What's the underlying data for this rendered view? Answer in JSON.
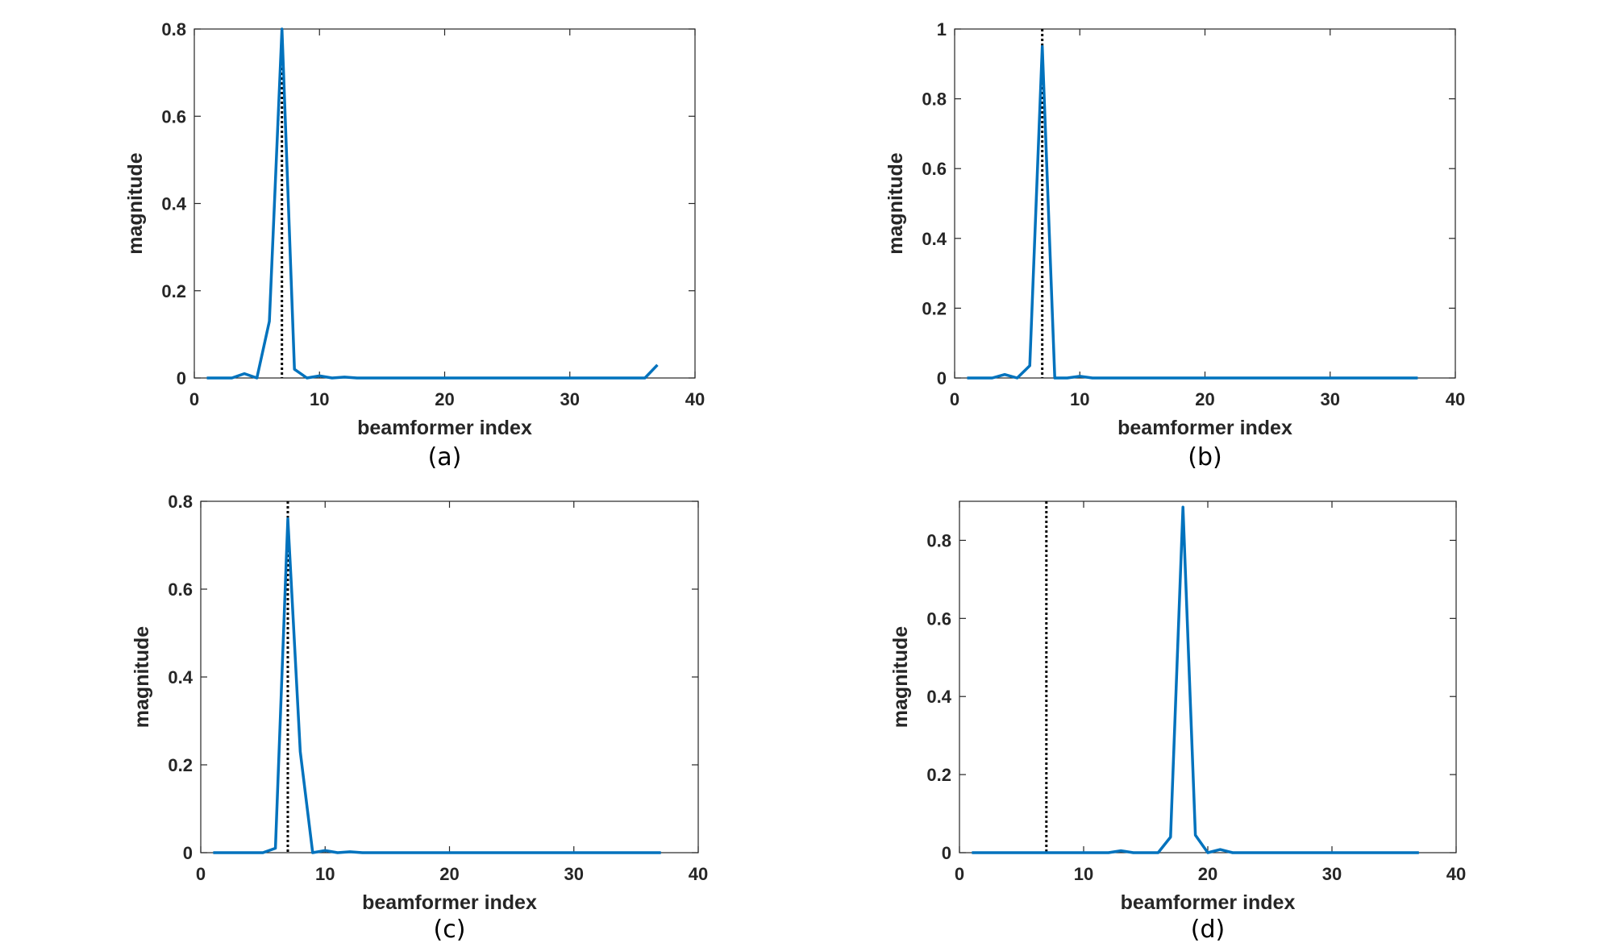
{
  "chart_data": [
    {
      "type": "line",
      "caption": "(a)",
      "xlabel": "beamformer index",
      "ylabel": "magnitude",
      "xlim": [
        0,
        40
      ],
      "ylim": [
        0,
        0.8
      ],
      "xticks": [
        0,
        10,
        20,
        30,
        40
      ],
      "yticks": [
        0,
        0.2,
        0.4,
        0.6,
        0.8
      ],
      "ytick_labels": [
        "0",
        "0.2",
        "0.4",
        "0.6",
        "0.8"
      ],
      "grid": false,
      "series_color": "#0072BD",
      "x": [
        1,
        2,
        3,
        4,
        5,
        6,
        7,
        8,
        9,
        10,
        11,
        12,
        13,
        14,
        15,
        16,
        17,
        18,
        19,
        20,
        21,
        22,
        23,
        24,
        25,
        26,
        27,
        28,
        29,
        30,
        31,
        32,
        33,
        34,
        35,
        36,
        37
      ],
      "y": [
        0,
        0,
        0,
        0.01,
        0,
        0.13,
        0.8,
        0.02,
        0,
        0.005,
        0,
        0.002,
        0,
        0,
        0,
        0,
        0,
        0,
        0,
        0,
        0,
        0,
        0,
        0,
        0,
        0,
        0,
        0,
        0,
        0,
        0,
        0,
        0,
        0,
        0,
        0,
        0.03
      ],
      "marker_x": 7,
      "marker_style": "dotted"
    },
    {
      "type": "line",
      "caption": "(b)",
      "xlabel": "beamformer index",
      "ylabel": "magnitude",
      "xlim": [
        0,
        40
      ],
      "ylim": [
        0,
        1
      ],
      "xticks": [
        0,
        10,
        20,
        30,
        40
      ],
      "yticks": [
        0,
        0.2,
        0.4,
        0.6,
        0.8,
        1
      ],
      "ytick_labels": [
        "0",
        "0.2",
        "0.4",
        "0.6",
        "0.8",
        "1"
      ],
      "grid": false,
      "series_color": "#0072BD",
      "x": [
        1,
        2,
        3,
        4,
        5,
        6,
        7,
        8,
        9,
        10,
        11,
        12,
        13,
        14,
        15,
        16,
        17,
        18,
        19,
        20,
        21,
        22,
        23,
        24,
        25,
        26,
        27,
        28,
        29,
        30,
        31,
        32,
        33,
        34,
        35,
        36,
        37
      ],
      "y": [
        0,
        0,
        0,
        0.01,
        0,
        0.035,
        0.95,
        0,
        0,
        0.005,
        0,
        0,
        0,
        0,
        0,
        0,
        0,
        0,
        0,
        0,
        0,
        0,
        0,
        0,
        0,
        0,
        0,
        0,
        0,
        0,
        0,
        0,
        0,
        0,
        0,
        0,
        0
      ],
      "marker_x": 7,
      "marker_style": "dotted"
    },
    {
      "type": "line",
      "caption": "(c)",
      "xlabel": "beamformer index",
      "ylabel": "magnitude",
      "xlim": [
        0,
        40
      ],
      "ylim": [
        0,
        0.8
      ],
      "xticks": [
        0,
        10,
        20,
        30,
        40
      ],
      "yticks": [
        0,
        0.2,
        0.4,
        0.6,
        0.8
      ],
      "ytick_labels": [
        "0",
        "0.2",
        "0.4",
        "0.6",
        "0.8"
      ],
      "grid": false,
      "series_color": "#0072BD",
      "x": [
        1,
        2,
        3,
        4,
        5,
        6,
        7,
        8,
        9,
        10,
        11,
        12,
        13,
        14,
        15,
        16,
        17,
        18,
        19,
        20,
        21,
        22,
        23,
        24,
        25,
        26,
        27,
        28,
        29,
        30,
        31,
        32,
        33,
        34,
        35,
        36,
        37
      ],
      "y": [
        0,
        0,
        0,
        0,
        0,
        0.01,
        0.76,
        0.23,
        0,
        0.005,
        0,
        0.002,
        0,
        0,
        0,
        0,
        0,
        0,
        0,
        0,
        0,
        0,
        0,
        0,
        0,
        0,
        0,
        0,
        0,
        0,
        0,
        0,
        0,
        0,
        0,
        0,
        0
      ],
      "marker_x": 7,
      "marker_style": "dotted"
    },
    {
      "type": "line",
      "caption": "(d)",
      "xlabel": "beamformer index",
      "ylabel": "magnitude",
      "xlim": [
        0,
        40
      ],
      "ylim": [
        0,
        0.9
      ],
      "xticks": [
        0,
        10,
        20,
        30,
        40
      ],
      "yticks": [
        0,
        0.2,
        0.4,
        0.6,
        0.8
      ],
      "ytick_labels": [
        "0",
        "0.2",
        "0.4",
        "0.6",
        "0.8"
      ],
      "grid": false,
      "series_color": "#0072BD",
      "x": [
        1,
        2,
        3,
        4,
        5,
        6,
        7,
        8,
        9,
        10,
        11,
        12,
        13,
        14,
        15,
        16,
        17,
        18,
        19,
        20,
        21,
        22,
        23,
        24,
        25,
        26,
        27,
        28,
        29,
        30,
        31,
        32,
        33,
        34,
        35,
        36,
        37
      ],
      "y": [
        0,
        0,
        0,
        0,
        0,
        0,
        0,
        0,
        0,
        0,
        0,
        0,
        0.005,
        0,
        0,
        0,
        0.04,
        0.885,
        0.045,
        0,
        0.008,
        0,
        0,
        0,
        0,
        0,
        0,
        0,
        0,
        0,
        0,
        0,
        0,
        0,
        0,
        0,
        0
      ],
      "marker_x": 7,
      "marker_style": "dotted"
    }
  ]
}
